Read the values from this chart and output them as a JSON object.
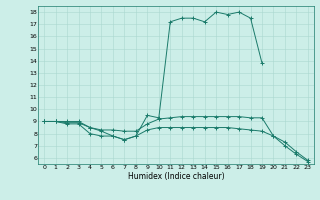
{
  "xlabel": "Humidex (Indice chaleur)",
  "x": [
    0,
    1,
    2,
    3,
    4,
    5,
    6,
    7,
    8,
    9,
    10,
    11,
    12,
    13,
    14,
    15,
    16,
    17,
    18,
    19,
    20,
    21,
    22,
    23
  ],
  "line1": [
    9,
    9,
    9,
    9,
    8.5,
    8.2,
    7.8,
    7.5,
    7.8,
    9.5,
    9.3,
    17.2,
    17.5,
    17.5,
    17.2,
    18.0,
    17.8,
    18.0,
    17.5,
    13.8,
    null,
    null,
    null,
    null
  ],
  "line2": [
    9,
    9,
    8.9,
    8.9,
    8.5,
    8.3,
    8.3,
    8.2,
    8.2,
    8.8,
    9.2,
    9.3,
    9.4,
    9.4,
    9.4,
    9.4,
    9.4,
    9.4,
    9.3,
    9.3,
    7.8,
    7.3,
    6.5,
    5.8
  ],
  "line3": [
    9,
    9,
    8.8,
    8.8,
    8.0,
    7.8,
    7.8,
    7.5,
    7.8,
    8.3,
    8.5,
    8.5,
    8.5,
    8.5,
    8.5,
    8.5,
    8.5,
    8.4,
    8.3,
    8.2,
    7.8,
    7.0,
    6.3,
    5.7
  ],
  "color": "#1a7a6a",
  "bg_color": "#cceee8",
  "grid_color": "#aad8d0",
  "ylim": [
    5.5,
    18.5
  ],
  "xlim": [
    -0.5,
    23.5
  ],
  "yticks": [
    6,
    7,
    8,
    9,
    10,
    11,
    12,
    13,
    14,
    15,
    16,
    17,
    18
  ],
  "xticks": [
    0,
    1,
    2,
    3,
    4,
    5,
    6,
    7,
    8,
    9,
    10,
    11,
    12,
    13,
    14,
    15,
    16,
    17,
    18,
    19,
    20,
    21,
    22,
    23
  ],
  "tick_fontsize": 4.5,
  "label_fontsize": 5.5
}
